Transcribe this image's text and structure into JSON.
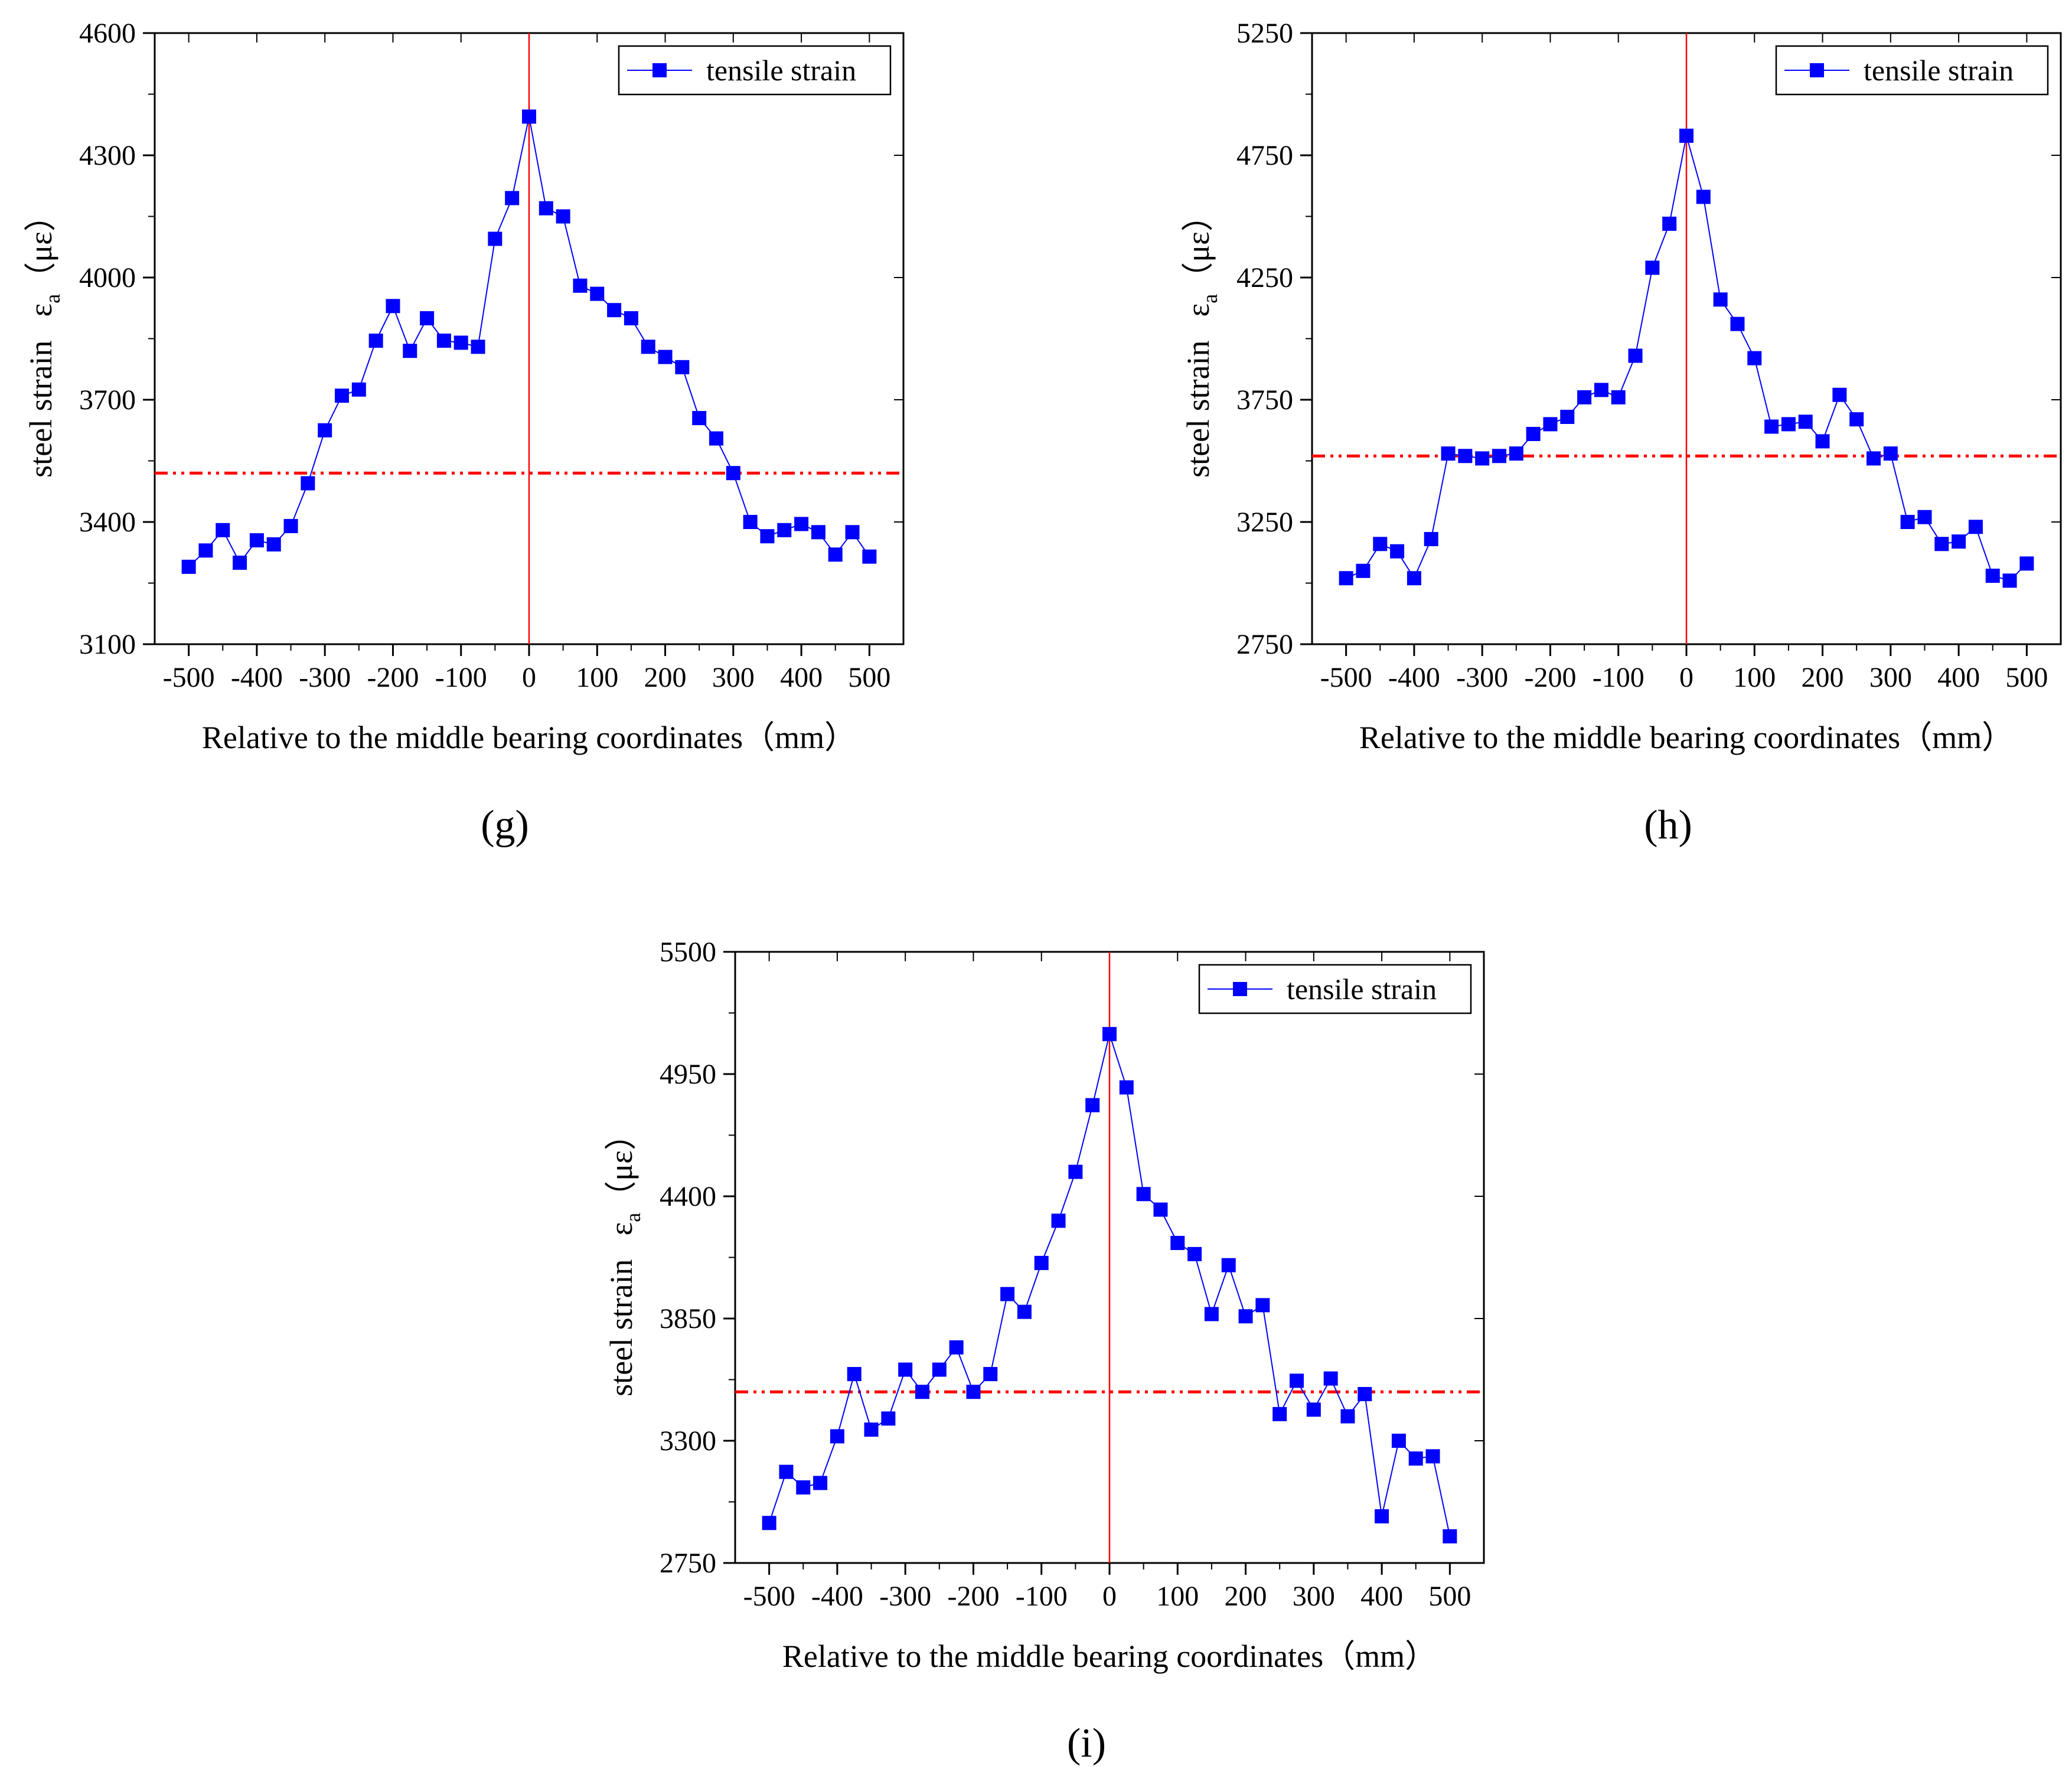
{
  "colors": {
    "series": "#0000ff",
    "marker": "#0000ff",
    "threshold": "#ff0000",
    "center_line": "#ff0000",
    "axis": "#000000"
  },
  "chart_data": [
    {
      "type": "line",
      "label": "g",
      "label_display": "(g)",
      "xlabel": "Relative to the middle bearing coordinates（mm）",
      "ylabel": {
        "prefix": "steel strain",
        "symbol": "ε",
        "subscript": "a",
        "unit": "（με）"
      },
      "xlim": [
        -550,
        550
      ],
      "ylim": [
        3100,
        4600
      ],
      "xticks": [
        -500,
        -400,
        -300,
        -200,
        -100,
        0,
        100,
        200,
        300,
        400,
        500
      ],
      "xtick_labels": [
        "-500",
        "-400",
        "-300",
        "-200",
        "-100",
        "0",
        "100",
        "200",
        "300",
        "400",
        "500"
      ],
      "yticks": [
        3100,
        3400,
        3700,
        4000,
        4300,
        4600
      ],
      "ytick_labels": [
        "3100",
        "3400",
        "3700",
        "4000",
        "4300",
        "4600"
      ],
      "threshold": 3520,
      "vline": 0,
      "legend": "top-right",
      "series": [
        {
          "name": "tensile strain",
          "x": [
            -500,
            -475,
            -450,
            -425,
            -400,
            -375,
            -350,
            -325,
            -300,
            -275,
            -250,
            -225,
            -200,
            -175,
            -150,
            -125,
            -100,
            -75,
            -50,
            -25,
            0,
            25,
            50,
            75,
            100,
            125,
            150,
            175,
            200,
            225,
            250,
            275,
            300,
            325,
            350,
            375,
            400,
            425,
            450,
            475,
            500
          ],
          "y": [
            3290,
            3330,
            3380,
            3300,
            3355,
            3345,
            3390,
            3495,
            3625,
            3710,
            3725,
            3845,
            3930,
            3820,
            3900,
            3845,
            3840,
            3830,
            4095,
            4195,
            4395,
            4170,
            4150,
            3980,
            3960,
            3920,
            3900,
            3830,
            3805,
            3780,
            3655,
            3605,
            3520,
            3400,
            3365,
            3380,
            3395,
            3375,
            3320,
            3375,
            3315
          ]
        }
      ]
    },
    {
      "type": "line",
      "label": "h",
      "label_display": "(h)",
      "xlabel": "Relative to the middle bearing coordinates（mm）",
      "ylabel": {
        "prefix": "steel strain",
        "symbol": "ε",
        "subscript": "a",
        "unit": "（με）"
      },
      "xlim": [
        -550,
        550
      ],
      "ylim": [
        2750,
        5250
      ],
      "xticks": [
        -500,
        -400,
        -300,
        -200,
        -100,
        0,
        100,
        200,
        300,
        400,
        500
      ],
      "xtick_labels": [
        "-500",
        "-400",
        "-300",
        "-200",
        "-100",
        "0",
        "100",
        "200",
        "300",
        "400",
        "500"
      ],
      "yticks": [
        2750,
        3250,
        3750,
        4250,
        4750,
        5250
      ],
      "ytick_labels": [
        "2750",
        "3250",
        "3750",
        "4250",
        "4750",
        "5250"
      ],
      "threshold": 3520,
      "vline": 0,
      "legend": "top-right",
      "series": [
        {
          "name": "tensile strain",
          "x": [
            -500,
            -475,
            -450,
            -425,
            -400,
            -375,
            -350,
            -325,
            -300,
            -275,
            -250,
            -225,
            -200,
            -175,
            -150,
            -125,
            -100,
            -75,
            -50,
            -25,
            0,
            25,
            50,
            75,
            100,
            125,
            150,
            175,
            200,
            225,
            250,
            275,
            300,
            325,
            350,
            375,
            400,
            425,
            450,
            475,
            500
          ],
          "y": [
            3020,
            3050,
            3160,
            3130,
            3020,
            3180,
            3530,
            3520,
            3510,
            3520,
            3530,
            3610,
            3650,
            3680,
            3760,
            3790,
            3760,
            3930,
            4290,
            4470,
            4830,
            4580,
            4160,
            4060,
            3920,
            3640,
            3650,
            3660,
            3580,
            3770,
            3670,
            3510,
            3530,
            3250,
            3270,
            3160,
            3170,
            3230,
            3030,
            3010,
            3080
          ]
        }
      ]
    },
    {
      "type": "line",
      "label": "i",
      "label_display": "(i)",
      "xlabel": "Relative to the middle bearing coordinates（mm）",
      "ylabel": {
        "prefix": "steel strain",
        "symbol": "ε",
        "subscript": "a",
        "unit": "（με）"
      },
      "xlim": [
        -550,
        550
      ],
      "ylim": [
        2750,
        5500
      ],
      "xticks": [
        -500,
        -400,
        -300,
        -200,
        -100,
        0,
        100,
        200,
        300,
        400,
        500
      ],
      "xtick_labels": [
        "-500",
        "-400",
        "-300",
        "-200",
        "-100",
        "0",
        "100",
        "200",
        "300",
        "400",
        "500"
      ],
      "yticks": [
        2750,
        3300,
        3850,
        4400,
        4950,
        5500
      ],
      "ytick_labels": [
        "2750",
        "3300",
        "3850",
        "4400",
        "4950",
        "5500"
      ],
      "threshold": 3520,
      "vline": 0,
      "legend": "top-right",
      "series": [
        {
          "name": "tensile strain",
          "x": [
            -500,
            -475,
            -450,
            -425,
            -400,
            -375,
            -350,
            -325,
            -300,
            -275,
            -250,
            -225,
            -200,
            -175,
            -150,
            -125,
            -100,
            -75,
            -50,
            -25,
            0,
            25,
            50,
            75,
            100,
            125,
            150,
            175,
            200,
            225,
            250,
            275,
            300,
            325,
            350,
            375,
            400,
            425,
            450,
            475,
            500
          ],
          "y": [
            2930,
            3160,
            3090,
            3110,
            3320,
            3600,
            3350,
            3400,
            3620,
            3520,
            3620,
            3720,
            3520,
            3600,
            3960,
            3880,
            4100,
            4290,
            4510,
            4810,
            5130,
            4890,
            4410,
            4340,
            4190,
            4140,
            3870,
            4090,
            3860,
            3910,
            3420,
            3570,
            3440,
            3580,
            3410,
            3510,
            2960,
            3300,
            3220,
            3230,
            2870
          ]
        }
      ]
    }
  ]
}
